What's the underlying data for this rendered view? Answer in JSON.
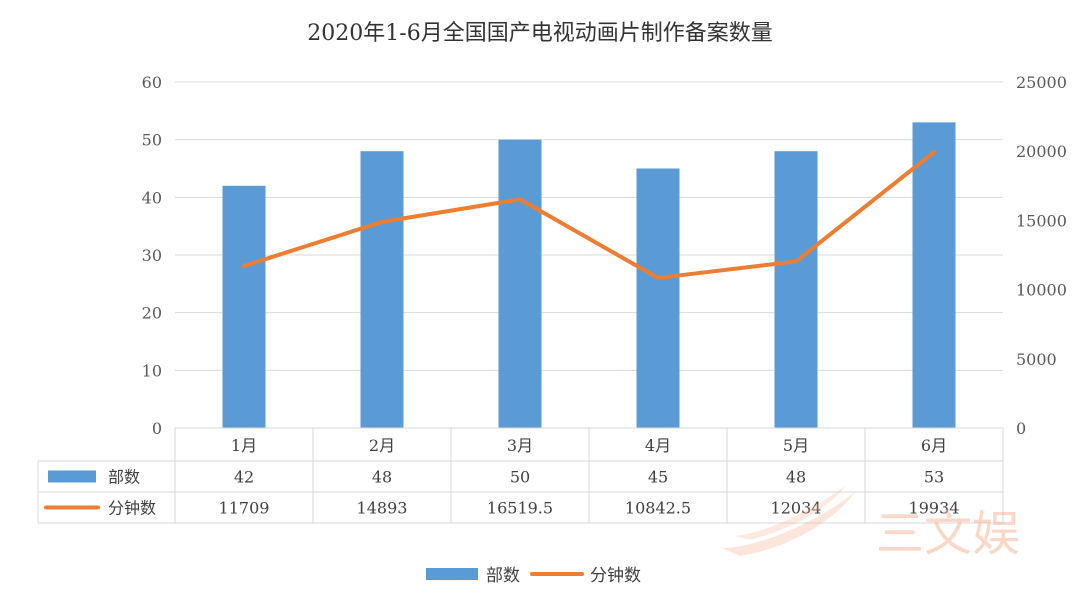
{
  "chart_data": {
    "type": "bar",
    "title": "2020年1-6月全国国产电视动画片制作备案数量",
    "categories": [
      "1月",
      "2月",
      "3月",
      "4月",
      "5月",
      "6月"
    ],
    "series": [
      {
        "name": "部数",
        "kind": "bar",
        "axis": "left",
        "color": "#5b9bd5",
        "values": [
          42,
          48,
          50,
          45,
          48,
          53
        ]
      },
      {
        "name": "分钟数",
        "kind": "line",
        "axis": "right",
        "color": "#ed7d31",
        "values": [
          11709,
          14893,
          16519.5,
          10842.5,
          12034,
          19934
        ]
      }
    ],
    "value_labels": {
      "部数": [
        "42",
        "48",
        "50",
        "45",
        "48",
        "53"
      ],
      "分钟数": [
        "11709",
        "14893",
        "16519.5",
        "10842.5",
        "12034",
        "19934"
      ]
    },
    "y_left": {
      "min": 0,
      "max": 60,
      "step": 10,
      "ticks": [
        "0",
        "10",
        "20",
        "30",
        "40",
        "50",
        "60"
      ]
    },
    "y_right": {
      "min": 0,
      "max": 25000,
      "step": 5000,
      "ticks": [
        "0",
        "5000",
        "10000",
        "15000",
        "20000",
        "25000"
      ]
    },
    "grid": true,
    "legend": "bottom-center",
    "data_table": true
  },
  "watermark": {
    "text": "三文娱",
    "color": "#f6b89a"
  }
}
